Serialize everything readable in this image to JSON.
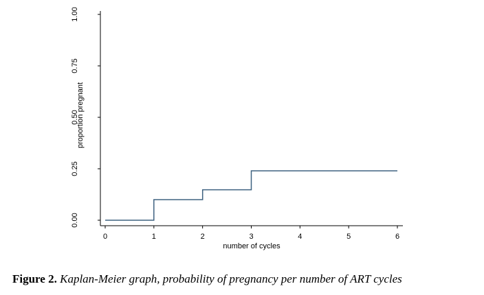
{
  "chart_data": {
    "type": "line",
    "step": true,
    "xlabel": "number of cycles",
    "ylabel": "proportion pregnant",
    "xlim": [
      0,
      6
    ],
    "ylim": [
      0,
      1
    ],
    "x_ticks": [
      "0",
      "1",
      "2",
      "3",
      "4",
      "5",
      "6"
    ],
    "y_ticks": [
      "0.00",
      "0.25",
      "0.50",
      "0.75",
      "1.00"
    ],
    "grid": false,
    "series": [
      {
        "color": "#3e6280",
        "points": [
          [
            0,
            0.0
          ],
          [
            1,
            0.0
          ],
          [
            1,
            0.1
          ],
          [
            2,
            0.1
          ],
          [
            2,
            0.148
          ],
          [
            3,
            0.148
          ],
          [
            3,
            0.24
          ],
          [
            6,
            0.24
          ]
        ]
      }
    ]
  },
  "caption": {
    "label": "Figure 2.",
    "text": "Kaplan-Meier graph, probability of pregnancy per number of ART cycles"
  }
}
